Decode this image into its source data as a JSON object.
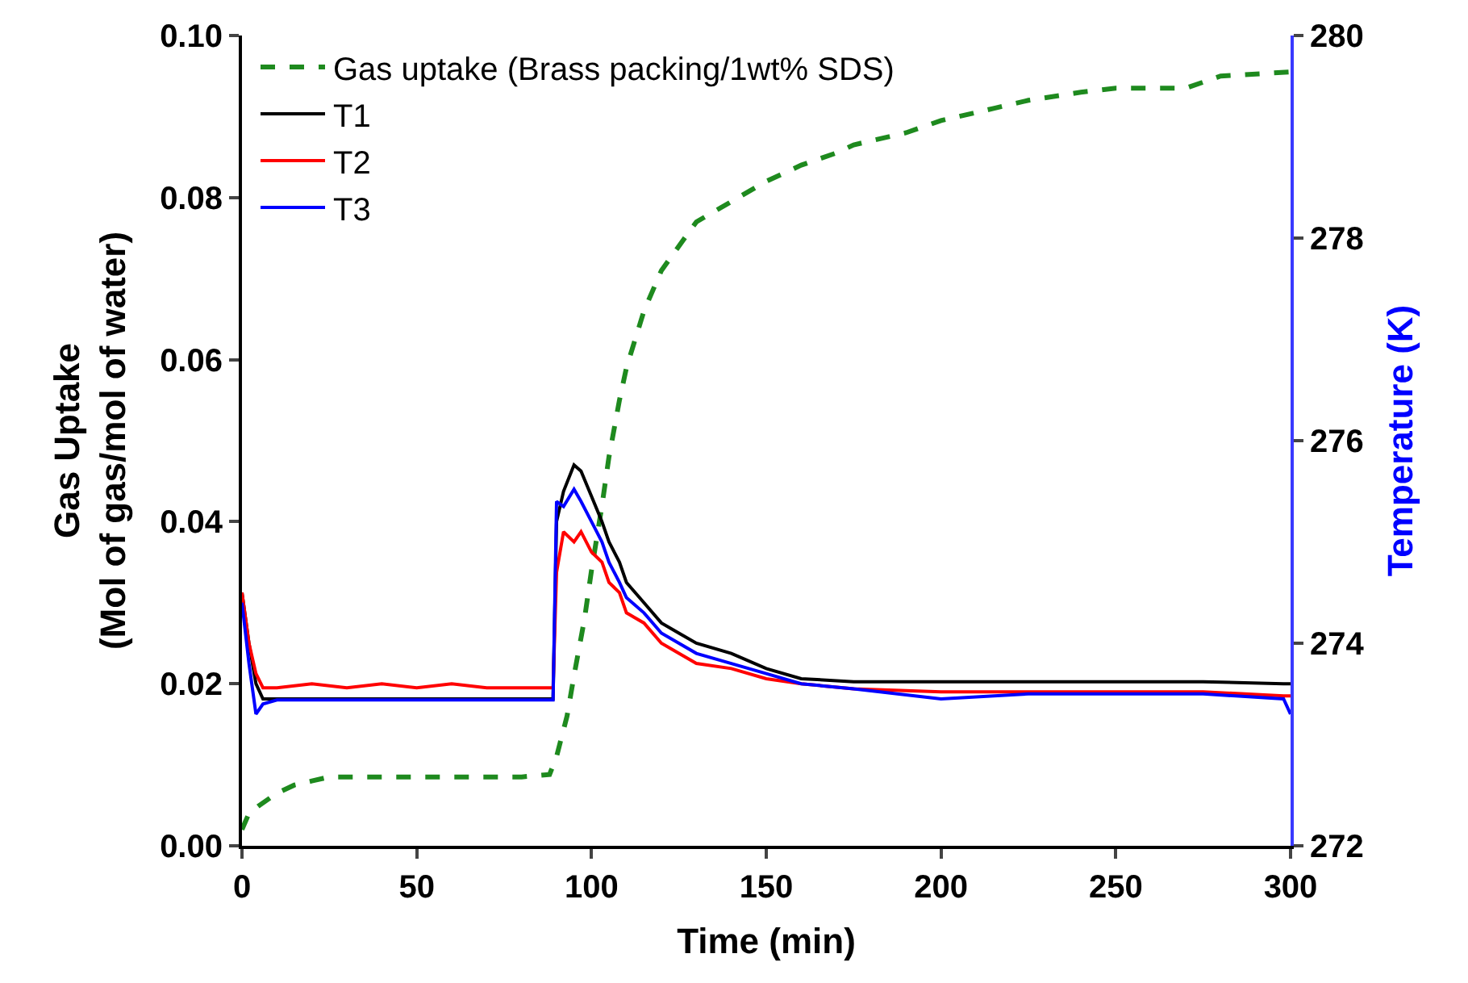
{
  "chart_data": {
    "type": "line",
    "xlabel": "Time (min)",
    "ylabel": "Gas Uptake\n(Mol of gas/mol of water)",
    "y2label": "Temperature (K)",
    "xlim": [
      0,
      300
    ],
    "xticks": [
      0,
      50,
      100,
      150,
      200,
      250,
      300
    ],
    "ylim": [
      0,
      0.1
    ],
    "yticks": [
      {
        "value": 0,
        "label": "0.00"
      },
      {
        "value": 0.02,
        "label": "0.02"
      },
      {
        "value": 0.04,
        "label": "0.04"
      },
      {
        "value": 0.06,
        "label": "0.06"
      },
      {
        "value": 0.08,
        "label": "0.08"
      },
      {
        "value": 0.1,
        "label": "0.10"
      }
    ],
    "y2lim": [
      272,
      280
    ],
    "y2ticks": [
      272,
      274,
      276,
      278,
      280
    ],
    "legend": "top left",
    "marker": "none",
    "series": [
      {
        "name": "Gas uptake (Brass packing/1wt% SDS)",
        "color": "#1e8a1e",
        "line_style": "dashed",
        "x": [
          0,
          2,
          5,
          10,
          15,
          20,
          25,
          40,
          60,
          80,
          88,
          90,
          93,
          95,
          98,
          100,
          103,
          105,
          108,
          110,
          115,
          120,
          125,
          130,
          140,
          150,
          160,
          170,
          175,
          190,
          200,
          215,
          225,
          240,
          250,
          270,
          280,
          300
        ],
        "values": [
          0.002,
          0.004,
          0.005,
          0.0065,
          0.0075,
          0.008,
          0.0085,
          0.0085,
          0.0085,
          0.0085,
          0.0088,
          0.011,
          0.016,
          0.021,
          0.028,
          0.034,
          0.042,
          0.048,
          0.055,
          0.059,
          0.066,
          0.071,
          0.074,
          0.077,
          0.0795,
          0.082,
          0.084,
          0.0855,
          0.0865,
          0.088,
          0.0895,
          0.091,
          0.092,
          0.093,
          0.0935,
          0.0935,
          0.095,
          0.0955
        ]
      },
      {
        "name": "T1",
        "color": "#000000",
        "line_style": "solid",
        "axis": "y2",
        "x": [
          0,
          2,
          4,
          6,
          10,
          20,
          30,
          40,
          50,
          60,
          70,
          80,
          89,
          90,
          92,
          95,
          97,
          100,
          103,
          105,
          108,
          110,
          115,
          120,
          125,
          130,
          140,
          150,
          160,
          175,
          200,
          225,
          250,
          275,
          298,
          300
        ],
        "values": [
          274.5,
          274.0,
          273.6,
          273.45,
          273.45,
          273.45,
          273.45,
          273.45,
          273.45,
          273.45,
          273.45,
          273.45,
          273.45,
          275.2,
          275.5,
          275.76,
          275.7,
          275.45,
          275.2,
          275.0,
          274.8,
          274.6,
          274.4,
          274.2,
          274.1,
          274.0,
          273.9,
          273.75,
          273.65,
          273.62,
          273.62,
          273.62,
          273.62,
          273.62,
          273.6,
          273.6
        ]
      },
      {
        "name": "T2",
        "color": "#ff0000",
        "line_style": "solid",
        "axis": "y2",
        "x": [
          0,
          2,
          4,
          6,
          10,
          20,
          30,
          40,
          50,
          60,
          70,
          80,
          89,
          90,
          92,
          95,
          97,
          100,
          103,
          105,
          108,
          110,
          115,
          120,
          125,
          130,
          140,
          150,
          160,
          175,
          200,
          225,
          250,
          275,
          298,
          300
        ],
        "values": [
          274.5,
          274.0,
          273.7,
          273.56,
          273.56,
          273.6,
          273.56,
          273.6,
          273.56,
          273.6,
          273.56,
          273.56,
          273.56,
          274.7,
          275.1,
          275.0,
          275.1,
          274.9,
          274.8,
          274.6,
          274.5,
          274.3,
          274.2,
          274.0,
          273.9,
          273.8,
          273.75,
          273.65,
          273.6,
          273.55,
          273.52,
          273.52,
          273.52,
          273.52,
          273.48,
          273.48
        ]
      },
      {
        "name": "T3",
        "color": "#0000ff",
        "line_style": "solid",
        "axis": "y2",
        "x": [
          0,
          2,
          4,
          6,
          10,
          20,
          30,
          40,
          50,
          60,
          70,
          80,
          89,
          90,
          92,
          95,
          97,
          100,
          103,
          105,
          108,
          110,
          115,
          120,
          125,
          130,
          140,
          150,
          160,
          175,
          200,
          225,
          250,
          275,
          298,
          300
        ],
        "values": [
          274.4,
          273.8,
          273.3,
          273.4,
          273.44,
          273.44,
          273.44,
          273.44,
          273.44,
          273.44,
          273.44,
          273.44,
          273.44,
          275.4,
          275.35,
          275.52,
          275.4,
          275.2,
          275.0,
          274.8,
          274.6,
          274.45,
          274.3,
          274.1,
          274.0,
          273.9,
          273.8,
          273.7,
          273.6,
          273.55,
          273.45,
          273.5,
          273.5,
          273.5,
          273.45,
          273.3
        ]
      }
    ]
  }
}
